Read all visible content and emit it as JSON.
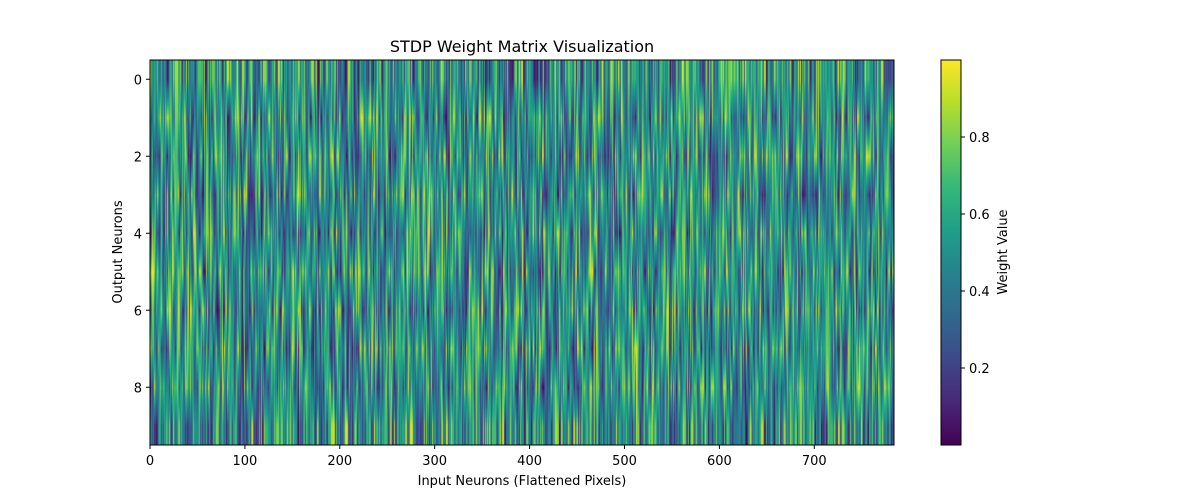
{
  "chart_data": {
    "type": "heatmap",
    "title": "STDP Weight Matrix Visualization",
    "xlabel": "Input Neurons (Flattened Pixels)",
    "ylabel": "Output Neurons",
    "n_rows": 10,
    "n_cols": 784,
    "xlim": [
      0,
      784
    ],
    "ylim": [
      -0.5,
      9.5
    ],
    "xticks": [
      0,
      100,
      200,
      300,
      400,
      500,
      600,
      700
    ],
    "yticks": [
      0,
      2,
      4,
      6,
      8
    ],
    "colormap": "viridis",
    "value_range": [
      0.0,
      1.0
    ],
    "interpolation": "smooth",
    "colorbar": {
      "label": "Weight Value",
      "ticks": [
        0.2,
        0.4,
        0.6,
        0.8
      ],
      "range": [
        0.0,
        1.0
      ]
    },
    "grid": false
  }
}
